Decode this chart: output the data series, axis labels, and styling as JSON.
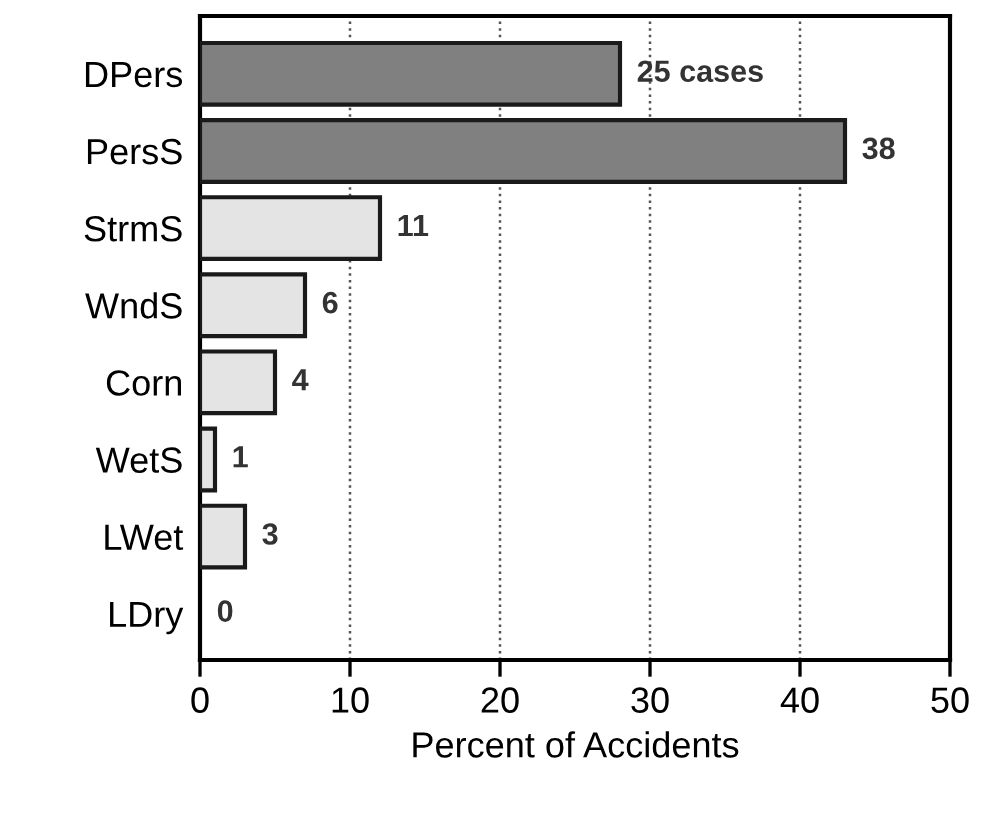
{
  "chart_data": {
    "type": "bar",
    "orientation": "horizontal",
    "xlabel": "Percent of Accidents",
    "categories": [
      "DPers",
      "PersS",
      "StrmS",
      "WndS",
      "Corn",
      "WetS",
      "LWet",
      "LDry"
    ],
    "values": [
      28,
      43,
      12,
      7,
      5,
      1,
      3,
      0
    ],
    "colors": [
      "#808080",
      "#808080",
      "#e4e4e4",
      "#e4e4e4",
      "#e4e4e4",
      "#e4e4e4",
      "#e4e4e4",
      "#e4e4e4"
    ],
    "annotations": [
      {
        "text": "25 cases",
        "x": 28,
        "y": "DPers"
      },
      {
        "text": "38",
        "x": 43,
        "y": "PersS"
      },
      {
        "text": "11",
        "x": 12,
        "y": "StrmS"
      },
      {
        "text": "6",
        "x": 7,
        "y": "WndS"
      },
      {
        "text": "4",
        "x": 5,
        "y": "Corn"
      },
      {
        "text": "1",
        "x": 1,
        "y": "WetS"
      },
      {
        "text": "3",
        "x": 3,
        "y": "LWet"
      },
      {
        "text": "0",
        "x": 0,
        "y": "LDry"
      }
    ],
    "xlim": [
      0,
      50
    ],
    "xticks": [
      0,
      10,
      20,
      30,
      40,
      50
    ],
    "grid": "x"
  }
}
